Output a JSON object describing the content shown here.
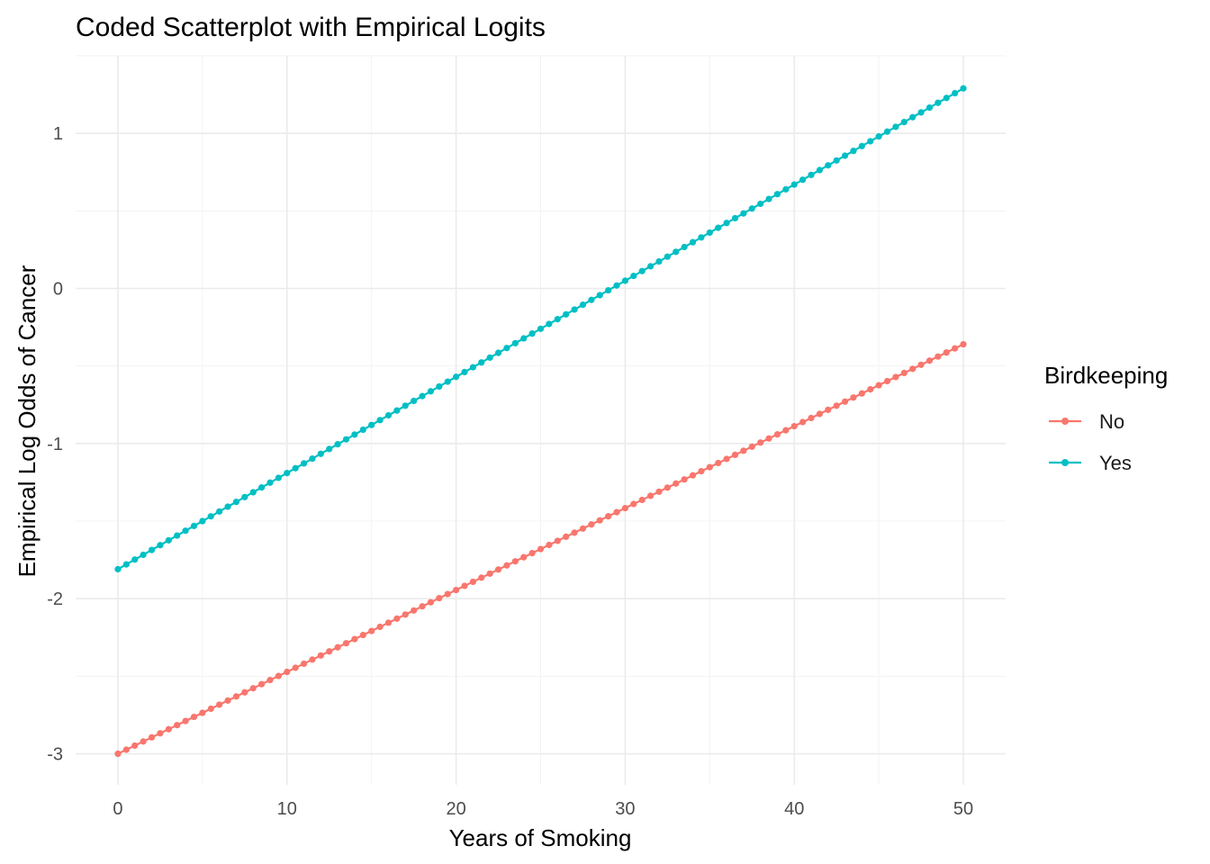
{
  "chart_data": {
    "type": "line",
    "title": "Coded Scatterplot with Empirical Logits",
    "xlabel": "Years of Smoking",
    "ylabel": "Empirical Log Odds of Cancer",
    "xlim": [
      -2.5,
      52.5
    ],
    "ylim": [
      -3.2,
      1.5
    ],
    "x_ticks": [
      0,
      10,
      20,
      30,
      40,
      50
    ],
    "y_ticks": [
      -3,
      -2,
      -1,
      0,
      1
    ],
    "grid": true,
    "legend": {
      "title": "Birdkeeping",
      "position": "right"
    },
    "series": [
      {
        "name": "No",
        "color": "#F8766D",
        "x_start": 0,
        "x_end": 50,
        "x_step": 0.5,
        "y_start": -3.0,
        "y_end": -0.36
      },
      {
        "name": "Yes",
        "color": "#00BFC4",
        "x_start": 0,
        "x_end": 50,
        "x_step": 0.5,
        "y_start": -1.81,
        "y_end": 1.29
      }
    ]
  }
}
